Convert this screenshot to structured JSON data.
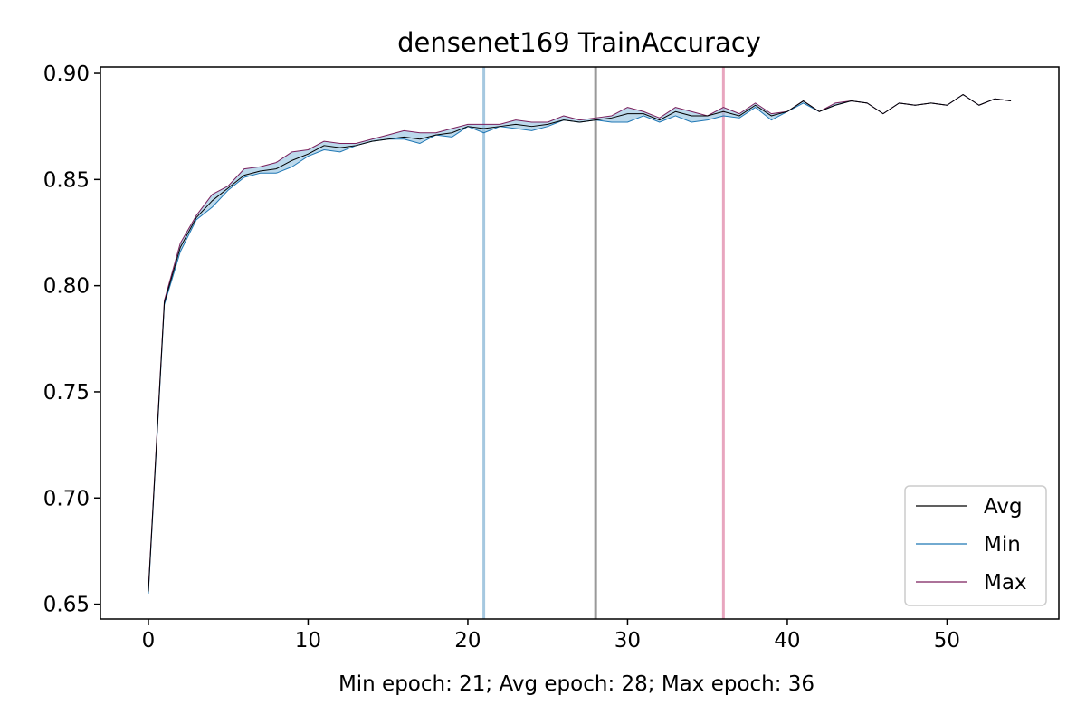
{
  "chart_data": {
    "type": "line",
    "title": "densenet169 TrainAccuracy",
    "xlabel": "Min epoch: 21; Avg epoch: 28; Max epoch: 36",
    "ylabel": "",
    "xlim": [
      -3,
      57
    ],
    "ylim": [
      0.643,
      0.903
    ],
    "x_ticks": [
      0,
      10,
      20,
      30,
      40,
      50
    ],
    "x_tick_labels": [
      "0",
      "10",
      "20",
      "30",
      "40",
      "50"
    ],
    "y_ticks": [
      0.65,
      0.7,
      0.75,
      0.8,
      0.85,
      0.9
    ],
    "y_tick_labels": [
      "0.65",
      "0.70",
      "0.75",
      "0.80",
      "0.85",
      "0.90"
    ],
    "grid": false,
    "legend_position": "lower-right",
    "x": [
      0,
      1,
      2,
      3,
      4,
      5,
      6,
      7,
      8,
      9,
      10,
      11,
      12,
      13,
      14,
      15,
      16,
      17,
      18,
      19,
      20,
      21,
      22,
      23,
      24,
      25,
      26,
      27,
      28,
      29,
      30,
      31,
      32,
      33,
      34,
      35,
      36,
      37,
      38,
      39,
      40,
      41,
      42,
      43,
      44,
      45,
      46,
      47,
      48,
      49,
      50,
      51,
      52,
      53,
      54
    ],
    "series": [
      {
        "name": "Avg",
        "color": "#000000",
        "values": [
          0.656,
          0.792,
          0.818,
          0.832,
          0.84,
          0.846,
          0.852,
          0.854,
          0.855,
          0.859,
          0.862,
          0.866,
          0.865,
          0.866,
          0.868,
          0.869,
          0.87,
          0.869,
          0.871,
          0.872,
          0.875,
          0.874,
          0.875,
          0.876,
          0.875,
          0.876,
          0.878,
          0.877,
          0.878,
          0.879,
          0.881,
          0.881,
          0.878,
          0.882,
          0.88,
          0.88,
          0.882,
          0.88,
          0.885,
          0.88,
          0.882,
          0.887,
          0.882,
          0.885,
          0.887,
          0.886,
          0.881,
          0.886,
          0.885,
          0.886,
          0.885,
          0.89,
          0.885,
          0.888,
          0.887
        ]
      },
      {
        "name": "Min",
        "color": "#1f77b4",
        "values": [
          0.655,
          0.791,
          0.816,
          0.831,
          0.837,
          0.845,
          0.851,
          0.853,
          0.853,
          0.856,
          0.861,
          0.864,
          0.863,
          0.866,
          0.868,
          0.869,
          0.869,
          0.867,
          0.871,
          0.87,
          0.875,
          0.872,
          0.875,
          0.874,
          0.873,
          0.875,
          0.878,
          0.877,
          0.878,
          0.877,
          0.877,
          0.88,
          0.877,
          0.88,
          0.877,
          0.878,
          0.88,
          0.879,
          0.884,
          0.878,
          0.882,
          0.886,
          0.882,
          0.885,
          0.887,
          0.886,
          0.881,
          0.886,
          0.885,
          0.886,
          0.885,
          0.89,
          0.885,
          0.888,
          0.887
        ]
      },
      {
        "name": "Max",
        "color": "#7a1f5c",
        "values": [
          0.657,
          0.793,
          0.82,
          0.833,
          0.843,
          0.847,
          0.855,
          0.856,
          0.858,
          0.863,
          0.864,
          0.868,
          0.867,
          0.867,
          0.869,
          0.871,
          0.873,
          0.872,
          0.872,
          0.874,
          0.876,
          0.876,
          0.876,
          0.878,
          0.877,
          0.877,
          0.88,
          0.878,
          0.879,
          0.88,
          0.884,
          0.882,
          0.879,
          0.884,
          0.882,
          0.88,
          0.884,
          0.881,
          0.886,
          0.881,
          0.882,
          0.887,
          0.882,
          0.886,
          0.887,
          0.886,
          0.881,
          0.886,
          0.885,
          0.886,
          0.885,
          0.89,
          0.885,
          0.888,
          0.887
        ]
      }
    ],
    "vertical_lines": [
      {
        "label": "Min epoch",
        "x": 21,
        "color": "#a6c8e0"
      },
      {
        "label": "Avg epoch",
        "x": 28,
        "color": "#999999"
      },
      {
        "label": "Max epoch",
        "x": 36,
        "color": "#e8a6bf"
      }
    ],
    "band_fill_color": "#8fbfe0"
  }
}
